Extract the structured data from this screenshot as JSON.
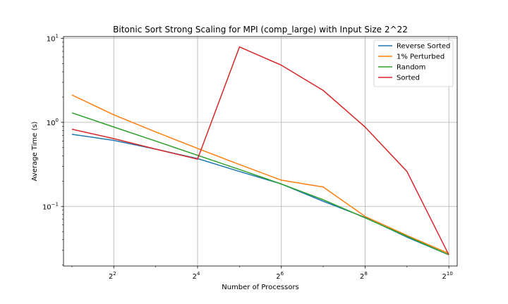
{
  "chart_data": {
    "type": "line",
    "title": "Bitonic Sort Strong Scaling for MPI (comp_large) with Input Size 2^22",
    "xlabel": "Number of Processors",
    "ylabel": "Average Time (s)",
    "xscale": "log2",
    "yscale": "log10",
    "xlim": [
      1.74,
      1176
    ],
    "ylim": [
      0.0195,
      10.5
    ],
    "x": [
      2,
      4,
      8,
      16,
      32,
      64,
      128,
      256,
      512,
      1024
    ],
    "x_ticks": [
      {
        "value": 4,
        "base": "2",
        "exp": "2"
      },
      {
        "value": 16,
        "base": "2",
        "exp": "4"
      },
      {
        "value": 64,
        "base": "2",
        "exp": "6"
      },
      {
        "value": 256,
        "base": "2",
        "exp": "8"
      },
      {
        "value": 1024,
        "base": "2",
        "exp": "10"
      }
    ],
    "y_ticks": [
      {
        "value": 0.1,
        "base": "10",
        "exp": "−1"
      },
      {
        "value": 1,
        "base": "10",
        "exp": "0"
      },
      {
        "value": 10,
        "base": "10",
        "exp": "1"
      }
    ],
    "grid": true,
    "legend_position": "top-right",
    "series": [
      {
        "name": "Reverse Sorted",
        "color": "#1f77b4",
        "values": [
          0.72,
          0.61,
          0.48,
          0.37,
          0.26,
          0.185,
          0.115,
          0.074,
          0.043,
          0.0265
        ]
      },
      {
        "name": "1% Perturbed",
        "color": "#ff7f0e",
        "values": [
          2.12,
          1.23,
          0.77,
          0.49,
          0.315,
          0.205,
          0.17,
          0.076,
          0.045,
          0.0275
        ]
      },
      {
        "name": "Random",
        "color": "#2ca02c",
        "values": [
          1.3,
          0.88,
          0.6,
          0.405,
          0.275,
          0.185,
          0.12,
          0.073,
          0.044,
          0.0265
        ]
      },
      {
        "name": "Sorted",
        "color": "#d62728",
        "values": [
          0.83,
          0.64,
          0.48,
          0.365,
          7.9,
          4.8,
          2.4,
          0.88,
          0.26,
          0.0265
        ]
      }
    ]
  }
}
